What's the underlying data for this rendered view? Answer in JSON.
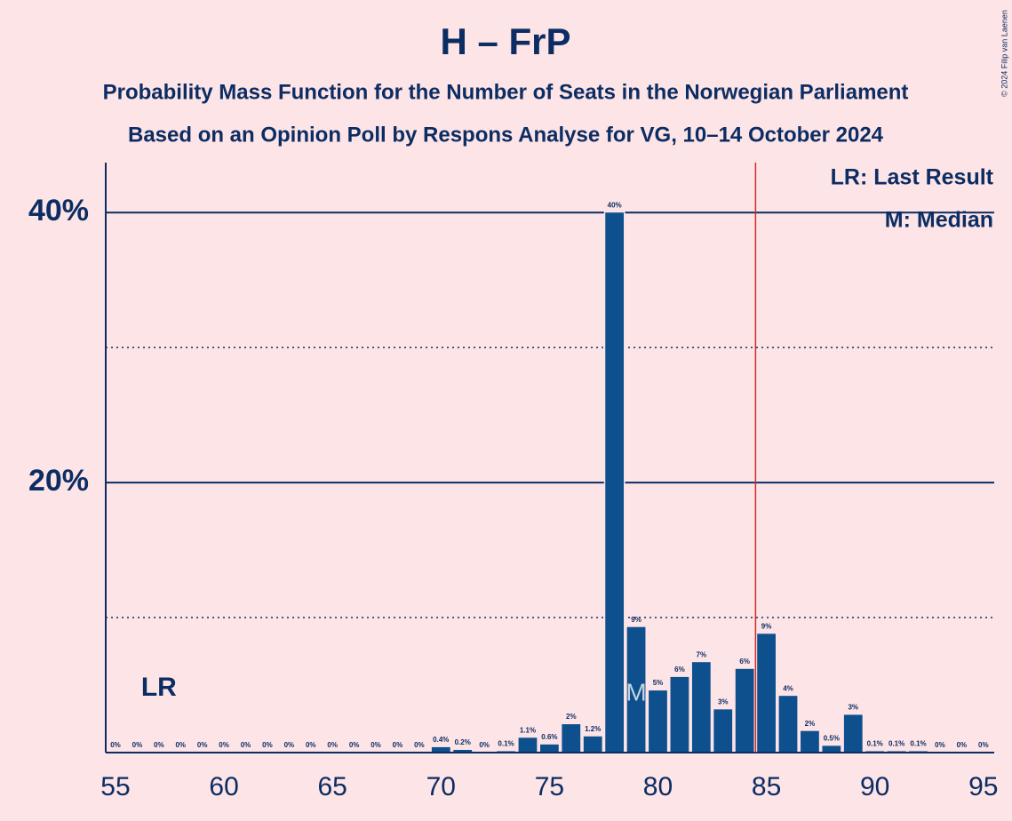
{
  "chart_data": {
    "type": "bar",
    "title": "H – FrP",
    "subtitles": [
      "Probability Mass Function for the Number of Seats in the Norwegian Parliament",
      "Based on an Opinion Poll by Respons Analyse for VG, 10–14 October 2024"
    ],
    "credit": "© 2024 Filip van Laenen",
    "x": [
      55,
      56,
      57,
      58,
      59,
      60,
      61,
      62,
      63,
      64,
      65,
      66,
      67,
      68,
      69,
      70,
      71,
      72,
      73,
      74,
      75,
      76,
      77,
      78,
      79,
      80,
      81,
      82,
      83,
      84,
      85,
      86,
      87,
      88,
      89,
      90,
      91,
      92,
      93,
      94,
      95
    ],
    "values": [
      0,
      0,
      0,
      0,
      0,
      0,
      0,
      0,
      0,
      0,
      0,
      0,
      0,
      0,
      0,
      0.4,
      0.2,
      0,
      0.1,
      1.1,
      0.6,
      2.1,
      1.2,
      40,
      9.3,
      4.6,
      5.6,
      6.7,
      3.2,
      6.2,
      8.8,
      4.2,
      1.6,
      0.5,
      2.8,
      0.1,
      0.1,
      0.1,
      0,
      0,
      0
    ],
    "value_labels": [
      "0%",
      "0%",
      "0%",
      "0%",
      "0%",
      "0%",
      "0%",
      "0%",
      "0%",
      "0%",
      "0%",
      "0%",
      "0%",
      "0%",
      "0%",
      "0.4%",
      "0.2%",
      "0%",
      "0.1%",
      "1.1%",
      "0.6%",
      "2%",
      "1.2%",
      "40%",
      "9%",
      "5%",
      "6%",
      "7%",
      "3%",
      "6%",
      "9%",
      "4%",
      "2%",
      "0.5%",
      "3%",
      "0.1%",
      "0.1%",
      "0.1%",
      "0%",
      "0%",
      "0%"
    ],
    "color": "#0e4f8e",
    "xlim": [
      54.55,
      95.5
    ],
    "xticks": [
      55,
      60,
      65,
      70,
      75,
      80,
      85,
      90,
      95
    ],
    "ylim": [
      0,
      43.7
    ],
    "yticks": [
      {
        "value": 20,
        "label": "20%"
      },
      {
        "value": 40,
        "label": "40%"
      }
    ],
    "minor_yticks": [
      10,
      30
    ],
    "threshold": {
      "value": 84.5,
      "color": "#d62728"
    },
    "annotations": [
      {
        "text": "LR",
        "x": 57
      },
      {
        "text": "M",
        "x": 79
      }
    ],
    "legend": [
      "LR: Last Result",
      "M: Median"
    ]
  }
}
